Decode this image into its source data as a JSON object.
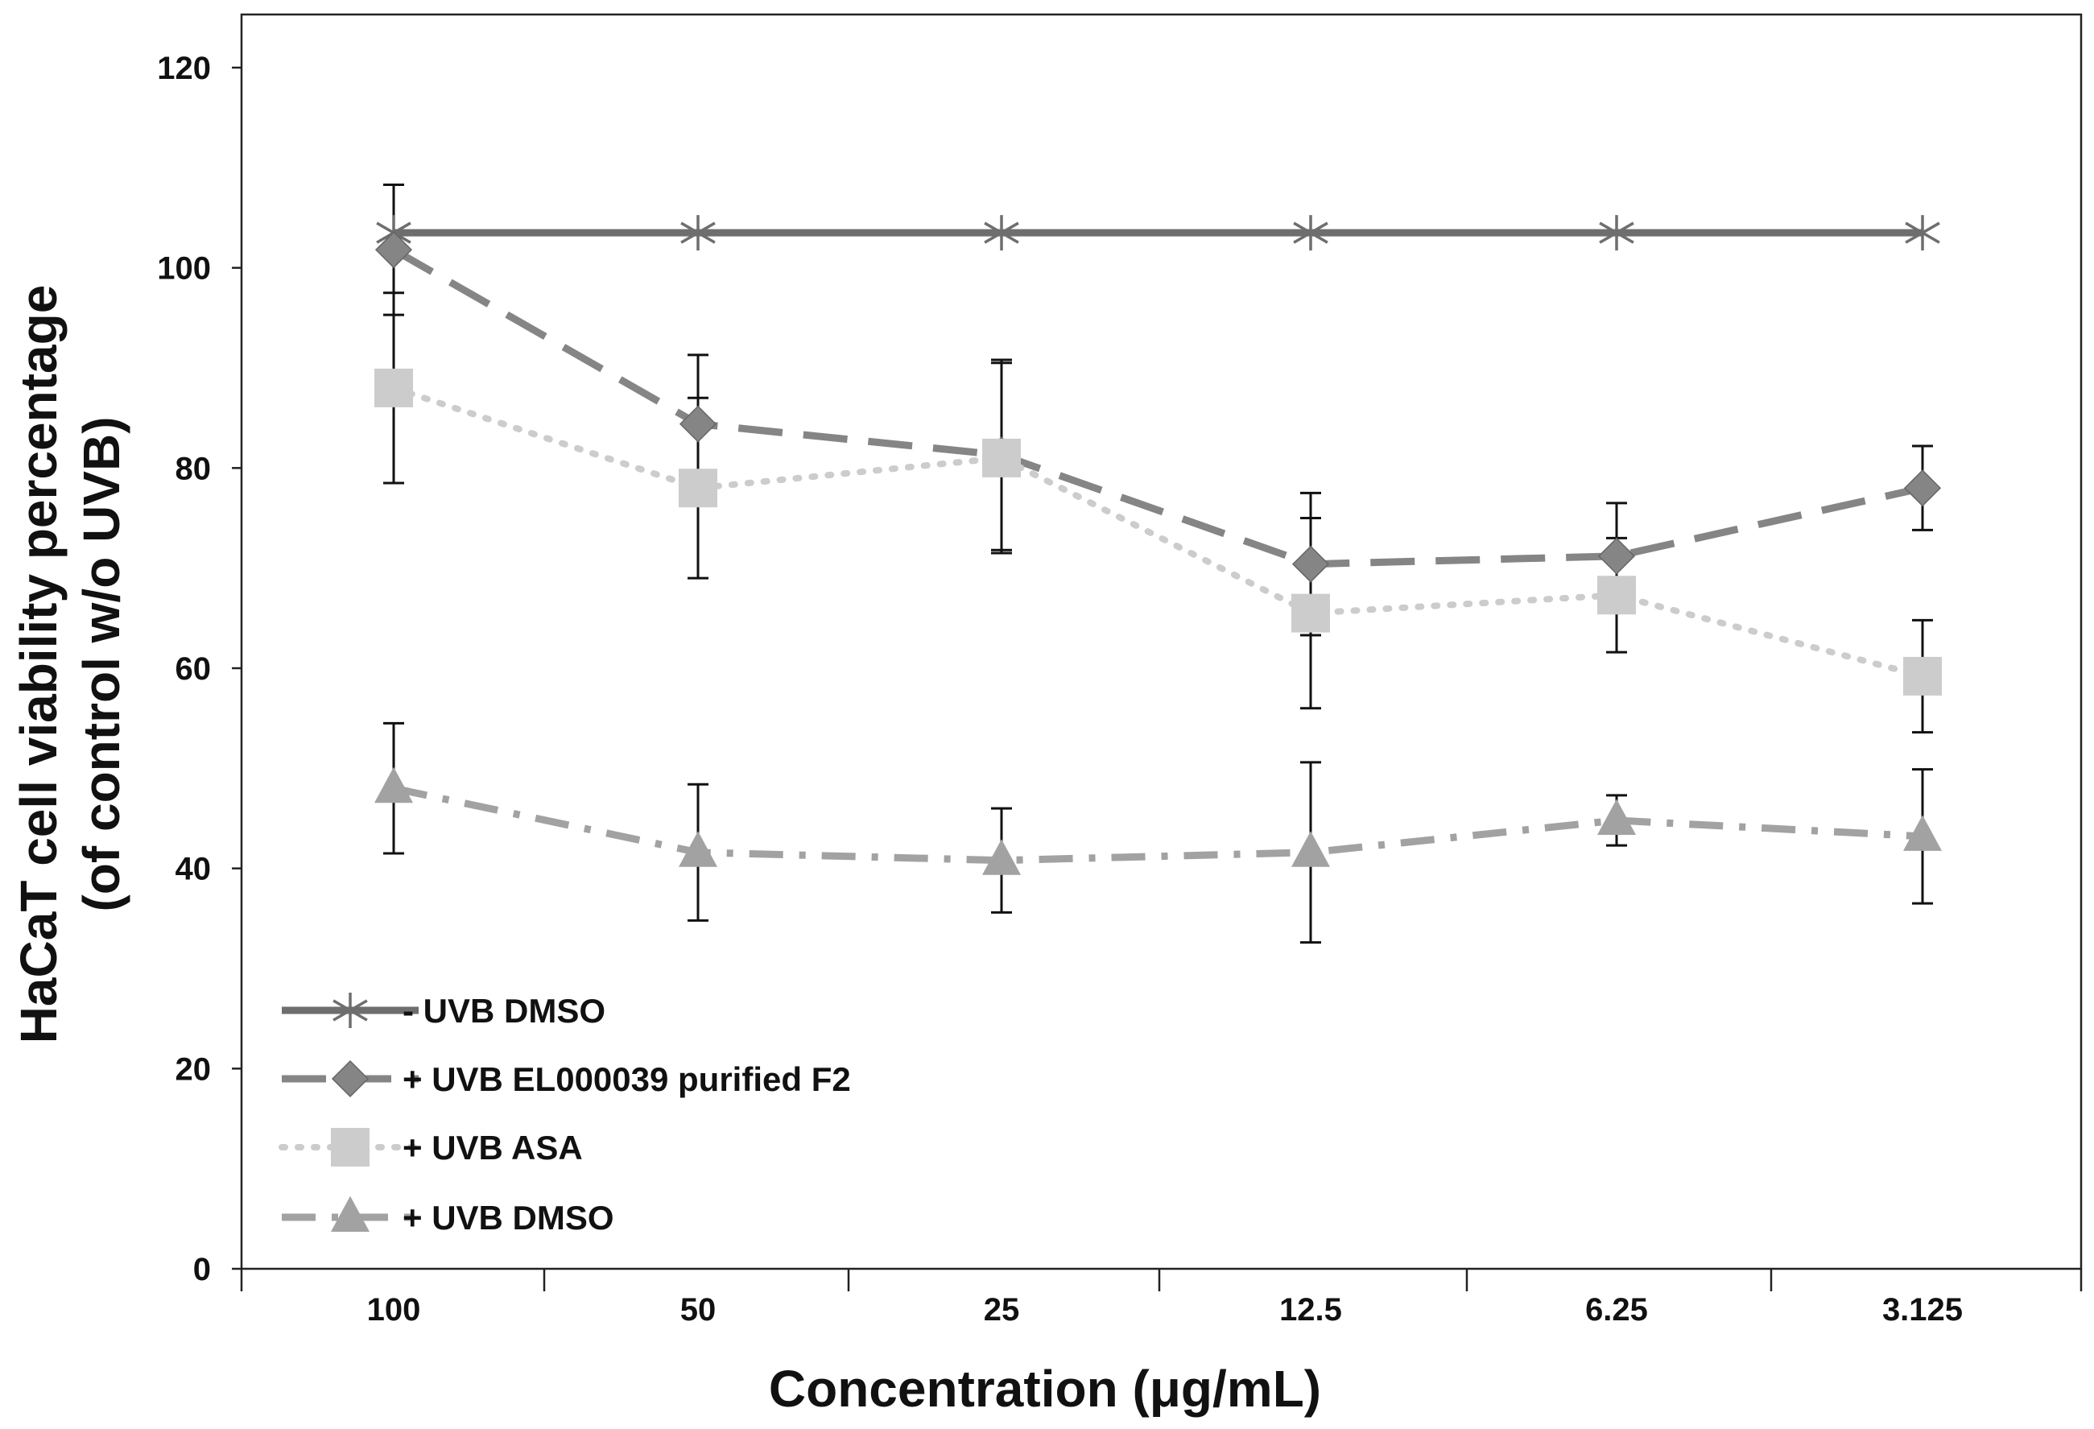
{
  "chart_data": {
    "type": "line",
    "title": "",
    "xlabel": "Concentration (μg/mL)",
    "ylabel_line1": "HaCaT cell viability percentage",
    "ylabel_line2": "(of control w/o UVB)",
    "categories": [
      "100",
      "50",
      "25",
      "12.5",
      "6.25",
      "3.125"
    ],
    "ylim": [
      0,
      120
    ],
    "yticks": [
      0,
      20,
      40,
      60,
      80,
      100,
      120
    ],
    "ytick_labels": [
      "0",
      "20",
      "40",
      "60",
      "80",
      "100",
      "120"
    ],
    "grid": false,
    "legend_position": "bottom-left",
    "series": [
      {
        "name": "- UVB DMSO",
        "values": [
          103.5,
          103.5,
          103.5,
          103.5,
          103.5,
          103.5
        ],
        "errors": [
          null,
          null,
          null,
          null,
          null,
          null
        ],
        "marker": "asterisk",
        "line_style": "solid",
        "color": "#6e6e6e"
      },
      {
        "name": "+ UVB EL000039 purified F2",
        "values": [
          101.8,
          84.4,
          81.3,
          70.4,
          71.2,
          78.0
        ],
        "errors": [
          6.5,
          6.9,
          9.5,
          7.1,
          5.3,
          4.2
        ],
        "marker": "diamond",
        "line_style": "dashed",
        "color": "#858585"
      },
      {
        "name": "+ UVB ASA",
        "values": [
          88.0,
          78.0,
          81.0,
          65.5,
          67.3,
          59.2
        ],
        "errors": [
          9.5,
          9.0,
          9.5,
          9.5,
          5.7,
          5.6
        ],
        "marker": "square",
        "line_style": "dotted",
        "color": "#cccccc"
      },
      {
        "name": "+ UVB DMSO",
        "values": [
          48.0,
          41.6,
          40.8,
          41.6,
          44.8,
          43.2
        ],
        "errors": [
          6.5,
          6.8,
          5.2,
          9.0,
          2.5,
          6.7
        ],
        "marker": "triangle",
        "line_style": "dashdot",
        "color": "#a2a2a2"
      }
    ]
  }
}
